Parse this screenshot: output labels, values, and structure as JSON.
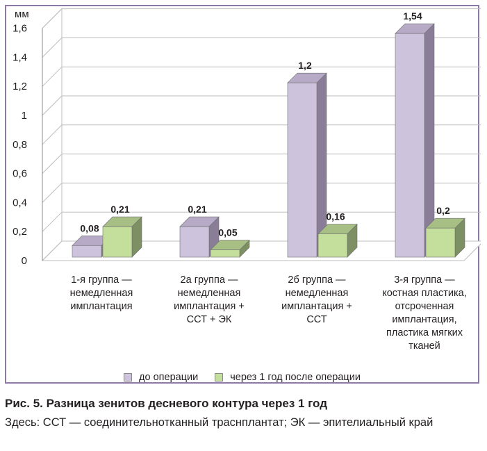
{
  "chart_data": {
    "type": "bar",
    "unit": "мм",
    "categories": [
      "1-я группа —\nнемедленная\nимплантация",
      "2а группа —\nнемедленная\nимплантация +\nССТ + ЭК",
      "2б группа —\nнемедленная\nимплантация +\nССТ",
      "3-я группа —\nкостная пластика,\nотсроченная\nимплантация,\nпластика мягких\nтканей"
    ],
    "series": [
      {
        "name": "до операции",
        "values": [
          0.08,
          0.21,
          1.2,
          1.54
        ],
        "labels": [
          "0,08",
          "0,21",
          "1,2",
          "1,54"
        ],
        "color": "#cdc3dd",
        "side_color": "#8a7d98",
        "top_color": "#b6aac7"
      },
      {
        "name": "через 1 год после операции",
        "values": [
          0.21,
          0.05,
          0.16,
          0.2
        ],
        "labels": [
          "0,21",
          "0,05",
          "0,16",
          "0,2"
        ],
        "color": "#c4de9b",
        "side_color": "#7c9063",
        "top_color": "#a7bf84"
      }
    ],
    "y_ticks": [
      "0",
      "0,2",
      "0,4",
      "0,6",
      "0,8",
      "1",
      "1,2",
      "1,4",
      "1,6"
    ],
    "ylim": [
      0,
      1.6
    ],
    "grid": true,
    "legend_position": "bottom"
  },
  "caption": {
    "title": "Рис. 5. Разница зенитов десневого контура через 1 год",
    "body": "Здесь: ССТ — соединительнотканный трасн­плантат; ЭК — эпителиаль­ный край"
  }
}
